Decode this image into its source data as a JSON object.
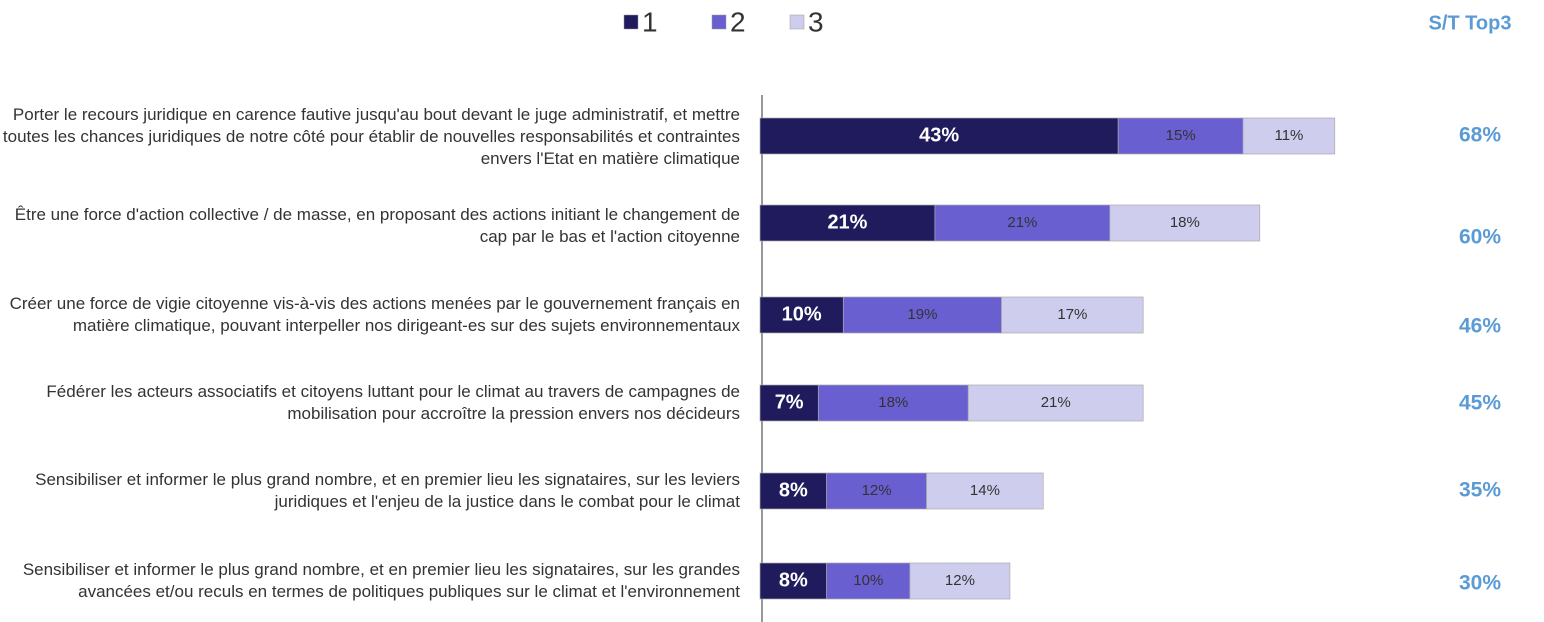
{
  "chart_data": {
    "type": "bar",
    "orientation": "horizontal",
    "stacked": true,
    "categories": [
      "Porter le recours juridique en carence fautive jusqu'au bout devant le juge administratif, et mettre toutes les chances juridiques de notre côté pour établir de nouvelles responsabilités et contraintes envers l'Etat en matière climatique",
      "Être une force d'action collective / de masse, en proposant des actions initiant le changement de cap par le bas et l'action citoyenne",
      "Créer une force de vigie citoyenne vis-à-vis des actions menées par le gouvernement français en matière climatique, pouvant interpeller nos dirigeant-es sur des sujets environnementaux",
      "Fédérer les acteurs associatifs et citoyens luttant pour le climat au travers de campagnes de mobilisation pour accroître la pression envers nos décideurs",
      "Sensibiliser et informer le plus grand nombre, et en premier lieu les signataires, sur les leviers juridiques et l'enjeu de la justice dans le combat pour le climat",
      "Sensibiliser et informer le plus grand nombre, et en premier lieu les signataires, sur les grandes avancées et/ou reculs en termes de politiques publiques sur le climat et l'environnement"
    ],
    "series": [
      {
        "name": "1",
        "color": "#1f1b5c",
        "values": [
          43,
          21,
          10,
          7,
          8,
          8
        ],
        "value_labels": [
          "43%",
          "21%",
          "10%",
          "7%",
          "8%",
          "8%"
        ]
      },
      {
        "name": "2",
        "color": "#6a5fd0",
        "values": [
          15,
          21,
          19,
          18,
          12,
          10
        ],
        "value_labels": [
          "15%",
          "21%",
          "19%",
          "18%",
          "12%",
          "10%"
        ]
      },
      {
        "name": "3",
        "color": "#cfcdee",
        "values": [
          11,
          18,
          17,
          21,
          14,
          12
        ],
        "value_labels": [
          "11%",
          "18%",
          "17%",
          "21%",
          "14%",
          "12%"
        ]
      }
    ],
    "totals_title": "S/T Top3",
    "totals_color": "#5b9bd5",
    "totals": [
      68,
      60,
      46,
      45,
      35,
      30
    ],
    "total_labels": [
      "68%",
      "60%",
      "46%",
      "45%",
      "35%",
      "30%"
    ],
    "legend": "top"
  }
}
